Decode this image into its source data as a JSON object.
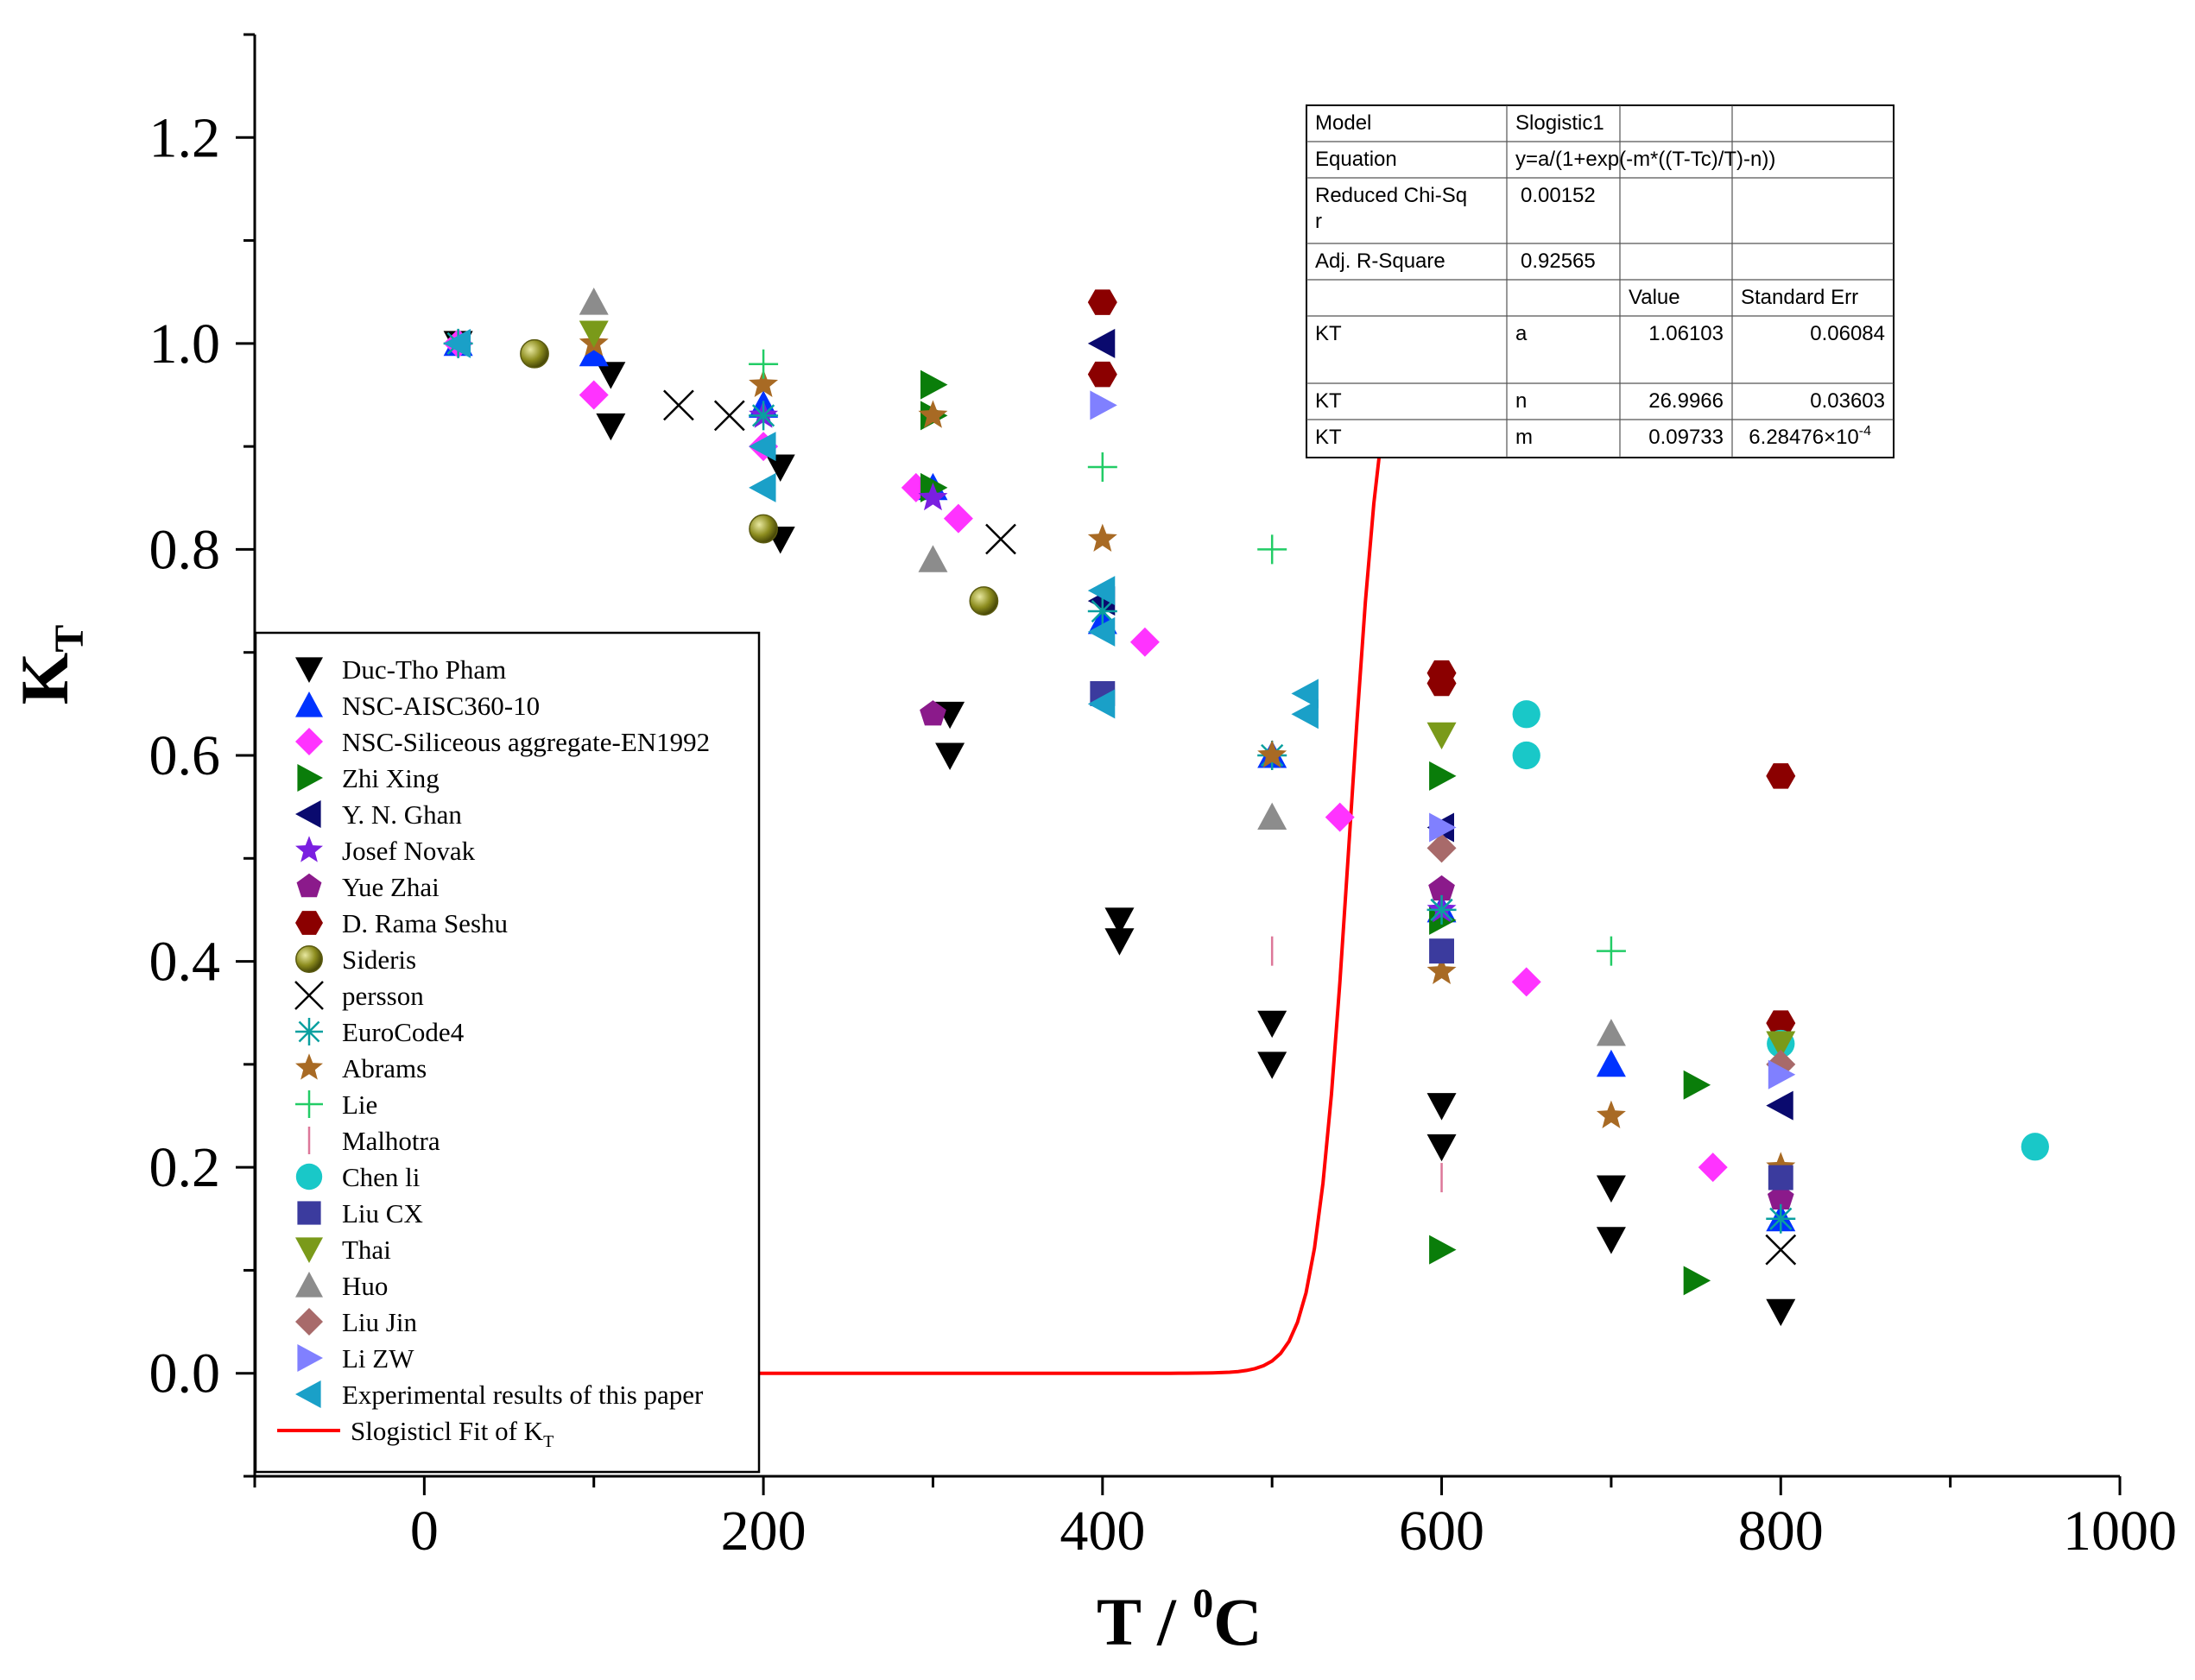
{
  "chart_data": {
    "type": "scatter",
    "title": "",
    "xlabel": "T / ",
    "xlabel_sup": "0",
    "xlabel_tail": "C",
    "ylabel": "K",
    "ylabel_sub": "T",
    "xlim": [
      -100,
      1000
    ],
    "ylim": [
      -0.1,
      1.3
    ],
    "xticks": [
      "0",
      "200",
      "400",
      "600",
      "800",
      "1000"
    ],
    "xtick_values": [
      0,
      200,
      400,
      600,
      800,
      1000
    ],
    "yticks": [
      "0.0",
      "0.2",
      "0.4",
      "0.6",
      "0.8",
      "1.0",
      "1.2"
    ],
    "ytick_values": [
      0.0,
      0.2,
      0.4,
      0.6,
      0.8,
      1.0,
      1.2
    ],
    "legend_position": "bottom-left",
    "series": [
      {
        "name": "Duc-Tho Pham",
        "marker": "triangle-down",
        "color": "#000000",
        "points": [
          [
            20,
            1.0
          ],
          [
            110,
            0.97
          ],
          [
            110,
            0.92
          ],
          [
            210,
            0.88
          ],
          [
            210,
            0.81
          ],
          [
            310,
            0.64
          ],
          [
            310,
            0.6
          ],
          [
            410,
            0.44
          ],
          [
            410,
            0.42
          ],
          [
            500,
            0.34
          ],
          [
            500,
            0.3
          ],
          [
            600,
            0.26
          ],
          [
            600,
            0.22
          ],
          [
            700,
            0.18
          ],
          [
            700,
            0.13
          ],
          [
            800,
            0.06
          ]
        ]
      },
      {
        "name": "NSC-AISC360-10",
        "marker": "triangle-up",
        "color": "#0033ff",
        "points": [
          [
            20,
            1.0
          ],
          [
            100,
            0.99
          ],
          [
            200,
            0.94
          ],
          [
            300,
            0.86
          ],
          [
            400,
            0.73
          ],
          [
            500,
            0.6
          ],
          [
            600,
            0.45
          ],
          [
            700,
            0.3
          ],
          [
            800,
            0.15
          ]
        ]
      },
      {
        "name": "NSC-Siliceous aggregate-EN1992",
        "marker": "diamond",
        "color": "#ff33ff",
        "points": [
          [
            20,
            1.0
          ],
          [
            100,
            0.95
          ],
          [
            200,
            0.9
          ],
          [
            290,
            0.86
          ],
          [
            315,
            0.83
          ],
          [
            425,
            0.71
          ],
          [
            540,
            0.54
          ],
          [
            650,
            0.38
          ],
          [
            760,
            0.2
          ]
        ]
      },
      {
        "name": "Zhi Xing",
        "marker": "triangle-right",
        "color": "#0a7d0a",
        "points": [
          [
            300,
            0.96
          ],
          [
            300,
            0.93
          ],
          [
            300,
            0.86
          ],
          [
            600,
            0.58
          ],
          [
            600,
            0.44
          ],
          [
            600,
            0.12
          ],
          [
            750,
            0.28
          ],
          [
            750,
            0.09
          ]
        ]
      },
      {
        "name": "Y. N. Ghan",
        "marker": "triangle-left",
        "color": "#0a0a6e",
        "points": [
          [
            400,
            1.0
          ],
          [
            400,
            0.75
          ],
          [
            600,
            0.53
          ],
          [
            800,
            0.26
          ]
        ]
      },
      {
        "name": "Josef Novak",
        "marker": "star",
        "color": "#7a1fe0",
        "points": [
          [
            200,
            0.93
          ],
          [
            300,
            0.85
          ],
          [
            600,
            0.45
          ]
        ]
      },
      {
        "name": "Yue Zhai",
        "marker": "pentagon",
        "color": "#8b1a8b",
        "points": [
          [
            300,
            0.64
          ],
          [
            600,
            0.47
          ],
          [
            800,
            0.17
          ]
        ]
      },
      {
        "name": "D. Rama Seshu",
        "marker": "hexagon",
        "color": "#8b0000",
        "points": [
          [
            400,
            1.04
          ],
          [
            400,
            0.97
          ],
          [
            600,
            0.68
          ],
          [
            600,
            0.67
          ],
          [
            800,
            0.58
          ],
          [
            800,
            0.34
          ]
        ]
      },
      {
        "name": "Sideris",
        "marker": "sphere",
        "color": "#8c8c1e",
        "points": [
          [
            65,
            0.99
          ],
          [
            200,
            0.82
          ],
          [
            330,
            0.75
          ]
        ]
      },
      {
        "name": "persson",
        "marker": "x",
        "color": "#000000",
        "points": [
          [
            150,
            0.94
          ],
          [
            180,
            0.93
          ],
          [
            340,
            0.81
          ],
          [
            800,
            0.12
          ]
        ]
      },
      {
        "name": "EuroCode4",
        "marker": "asterisk",
        "color": "#0aa0a0",
        "points": [
          [
            20,
            1.0
          ],
          [
            200,
            0.93
          ],
          [
            400,
            0.74
          ],
          [
            500,
            0.6
          ],
          [
            600,
            0.45
          ],
          [
            800,
            0.15
          ]
        ]
      },
      {
        "name": "Abrams",
        "marker": "star",
        "color": "#a86a24",
        "points": [
          [
            100,
            1.0
          ],
          [
            200,
            0.96
          ],
          [
            300,
            0.93
          ],
          [
            400,
            0.81
          ],
          [
            500,
            0.6
          ],
          [
            600,
            0.39
          ],
          [
            700,
            0.25
          ],
          [
            800,
            0.2
          ]
        ]
      },
      {
        "name": "Lie",
        "marker": "plus",
        "color": "#22cc66",
        "points": [
          [
            200,
            0.98
          ],
          [
            400,
            0.88
          ],
          [
            500,
            0.8
          ],
          [
            700,
            0.41
          ]
        ]
      },
      {
        "name": "Malhotra",
        "marker": "vline",
        "color": "#dd7799",
        "points": [
          [
            500,
            0.41
          ],
          [
            600,
            0.19
          ]
        ]
      },
      {
        "name": "Chen li",
        "marker": "circle",
        "color": "#19c8c8",
        "points": [
          [
            650,
            0.64
          ],
          [
            650,
            0.6
          ],
          [
            800,
            0.32
          ],
          [
            950,
            0.22
          ]
        ]
      },
      {
        "name": "Liu CX",
        "marker": "square",
        "color": "#3b3b9e",
        "points": [
          [
            400,
            0.66
          ],
          [
            600,
            0.41
          ],
          [
            800,
            0.19
          ]
        ]
      },
      {
        "name": "Thai",
        "marker": "triangle-down",
        "color": "#7a9a1a",
        "points": [
          [
            100,
            1.01
          ],
          [
            600,
            0.62
          ],
          [
            800,
            0.32
          ]
        ]
      },
      {
        "name": "Huo",
        "marker": "triangle-up",
        "color": "#8c8c8c",
        "points": [
          [
            100,
            1.04
          ],
          [
            300,
            0.79
          ],
          [
            500,
            0.54
          ],
          [
            700,
            0.33
          ]
        ]
      },
      {
        "name": "Liu Jin",
        "marker": "diamond",
        "color": "#a86a6a",
        "points": [
          [
            600,
            0.51
          ],
          [
            800,
            0.3
          ]
        ]
      },
      {
        "name": "Li ZW",
        "marker": "triangle-right",
        "color": "#8080ff",
        "points": [
          [
            400,
            0.94
          ],
          [
            600,
            0.53
          ],
          [
            800,
            0.29
          ]
        ]
      },
      {
        "name": "Experimental results of this paper",
        "marker": "triangle-left",
        "color": "#1aa0c8",
        "points": [
          [
            20,
            1.0
          ],
          [
            200,
            0.9
          ],
          [
            200,
            0.86
          ],
          [
            400,
            0.76
          ],
          [
            400,
            0.72
          ],
          [
            400,
            0.65
          ],
          [
            520,
            0.66
          ],
          [
            520,
            0.64
          ]
        ]
      }
    ],
    "fit": {
      "name": "Slogisticl Fit of  K",
      "name_sub": "T",
      "color": "#ff0000",
      "type": "line",
      "a": 1.06103,
      "n": 26.9966,
      "m": 0.09733,
      "x_range": [
        20,
        800
      ]
    },
    "stats_table": {
      "rows": [
        [
          "Model",
          "Slogistic1",
          "",
          ""
        ],
        [
          "Equation",
          "y=a/(1+exp(-m*((T-Tc)/T)-n))",
          "",
          ""
        ],
        [
          "Reduced Chi-Sq\nr",
          "0.00152",
          "",
          ""
        ],
        [
          "Adj. R-Square",
          "0.92565",
          "",
          ""
        ],
        [
          "",
          "",
          "Value",
          "Standard Err"
        ],
        [
          "KT",
          "a",
          "1.06103",
          "0.06084"
        ],
        [
          "KT",
          "n",
          "26.9966",
          "0.03603"
        ],
        [
          "KT",
          "m",
          "0.09733",
          "6.28476×10"
        ]
      ],
      "exp_sup": "-4"
    }
  }
}
